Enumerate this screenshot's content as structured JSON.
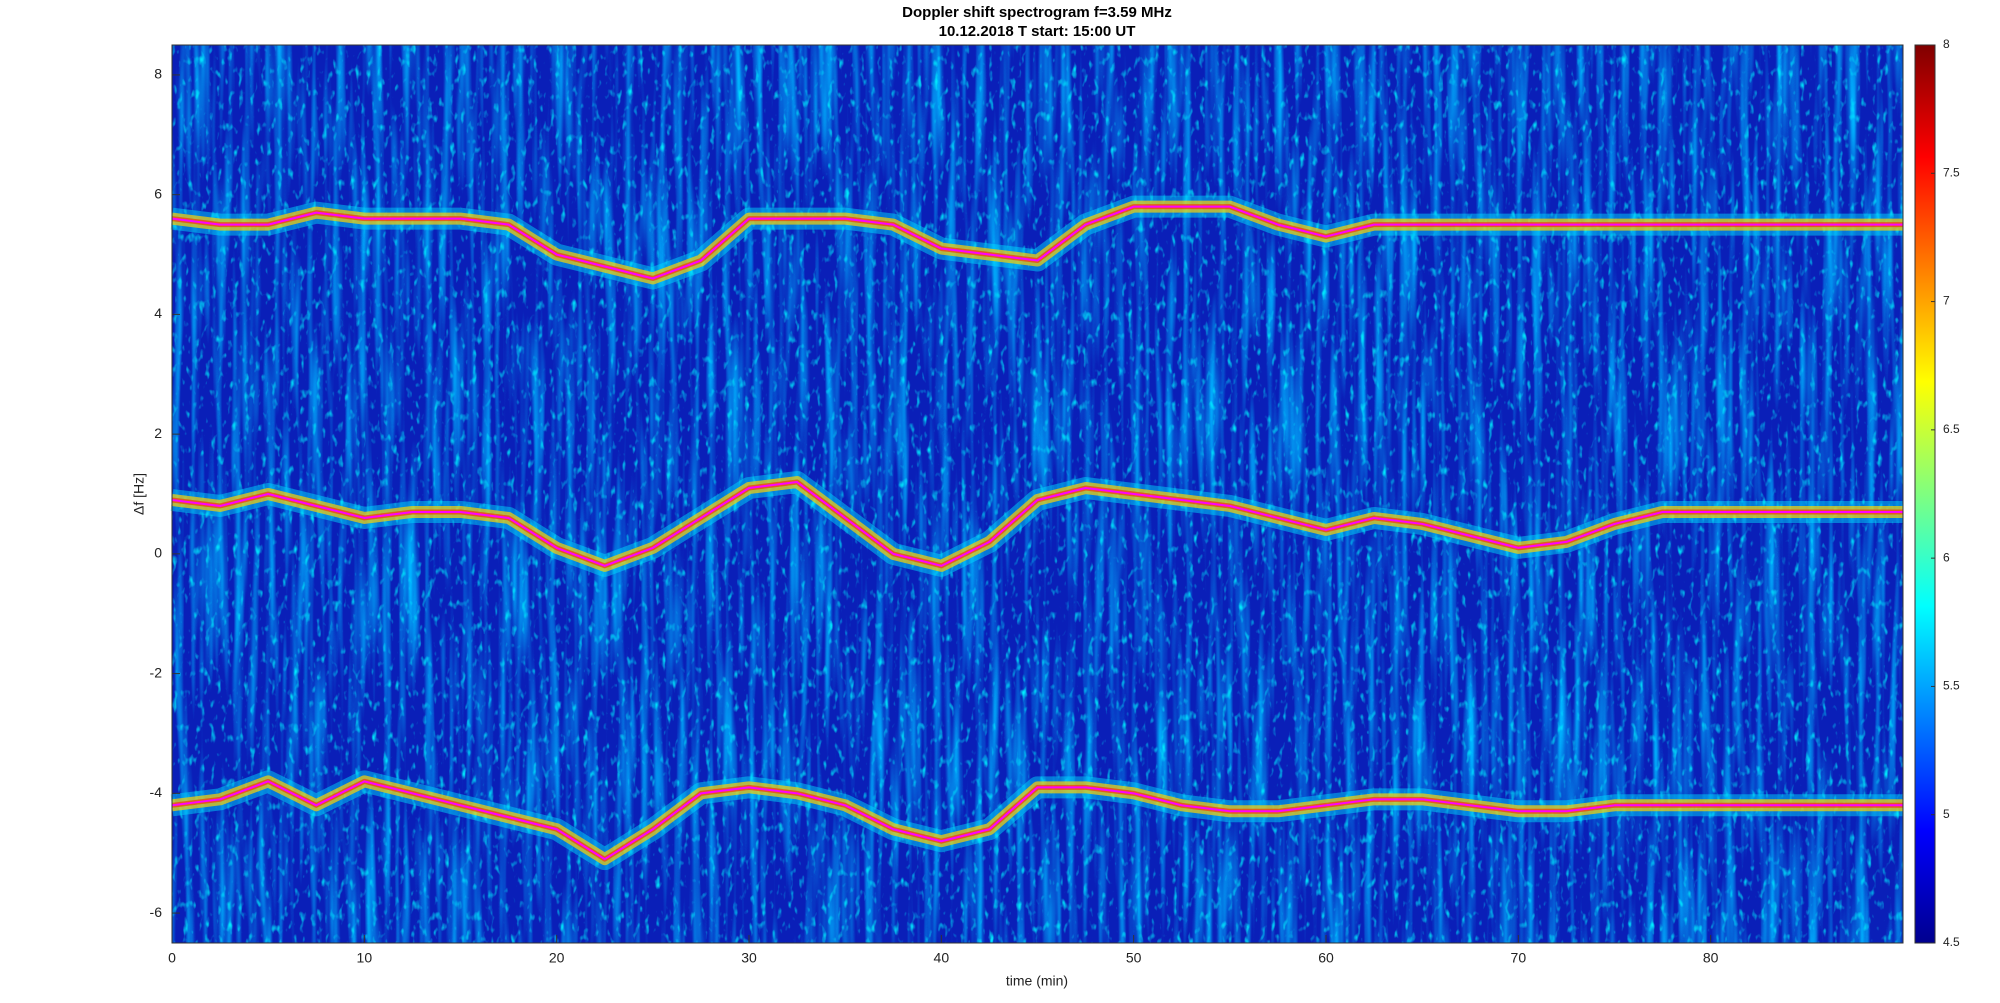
{
  "chart_data": {
    "type": "line",
    "title": "Doppler shift spectrogram f=3.59 MHz",
    "subtitle": "10.12.2018   T start: 15:00 UT",
    "x_label": "time (min)",
    "y_label": "Δf [Hz]",
    "xlim": [
      0,
      90
    ],
    "xticks": [
      0,
      10,
      20,
      30,
      40,
      50,
      60,
      70,
      80
    ],
    "ylim": [
      -6.5,
      8.5
    ],
    "yticks": [
      -6,
      -4,
      -2,
      0,
      2,
      4,
      6,
      8
    ],
    "colorbar": {
      "colormap": "jet",
      "lim": [
        4.5,
        8
      ],
      "ticks": [
        4.5,
        5,
        5.5,
        6,
        6.5,
        7,
        7.5,
        8
      ]
    },
    "x": [
      0,
      2.5,
      5,
      7.5,
      10,
      12.5,
      15,
      17.5,
      20,
      22.5,
      25,
      27.5,
      30,
      32.5,
      35,
      37.5,
      40,
      42.5,
      45,
      47.5,
      50,
      52.5,
      55,
      57.5,
      60,
      62.5,
      65,
      67.5,
      70,
      72.5,
      75,
      77.5,
      80,
      82.5,
      85,
      87.5,
      90
    ],
    "series": [
      {
        "color": "#ff00ff",
        "values": [
          5.6,
          5.5,
          5.5,
          5.7,
          5.6,
          5.6,
          5.6,
          5.5,
          5.0,
          4.8,
          4.6,
          4.9,
          5.6,
          5.6,
          5.6,
          5.5,
          5.1,
          5.0,
          4.9,
          5.5,
          5.8,
          5.8,
          5.8,
          5.5,
          5.3,
          5.5,
          5.5,
          5.5,
          5.5,
          5.5,
          5.5,
          5.5,
          5.5,
          5.5,
          5.5,
          5.5,
          5.5
        ]
      },
      {
        "color": "#ff00ff",
        "values": [
          0.9,
          0.8,
          1.0,
          0.8,
          0.6,
          0.7,
          0.7,
          0.6,
          0.1,
          -0.2,
          0.1,
          0.6,
          1.1,
          1.2,
          0.6,
          0.0,
          -0.2,
          0.2,
          0.9,
          1.1,
          1.0,
          0.9,
          0.8,
          0.6,
          0.4,
          0.6,
          0.5,
          0.3,
          0.1,
          0.2,
          0.5,
          0.7,
          0.7,
          0.7,
          0.7,
          0.7,
          0.7
        ]
      },
      {
        "color": "#ff00ff",
        "values": [
          -4.2,
          -4.1,
          -3.8,
          -4.2,
          -3.8,
          -4.0,
          -4.2,
          -4.4,
          -4.6,
          -5.1,
          -4.6,
          -4.0,
          -3.9,
          -4.0,
          -4.2,
          -4.6,
          -4.8,
          -4.6,
          -3.9,
          -3.9,
          -4.0,
          -4.2,
          -4.3,
          -4.3,
          -4.2,
          -4.1,
          -4.1,
          -4.2,
          -4.3,
          -4.3,
          -4.2,
          -4.2,
          -4.2,
          -4.2,
          -4.2,
          -4.2,
          -4.2
        ]
      }
    ]
  }
}
